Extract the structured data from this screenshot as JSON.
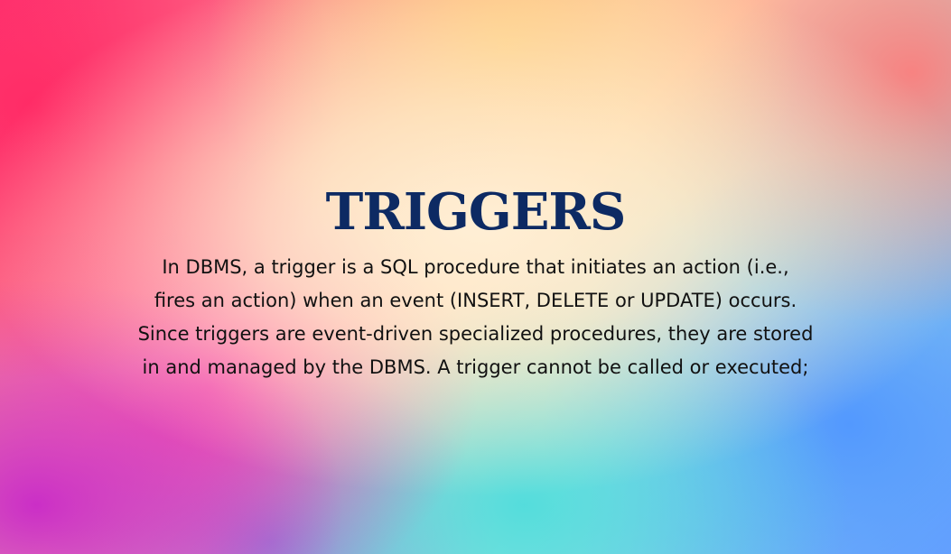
{
  "slide": {
    "title": "TRIGGERS",
    "body_lines": [
      "In DBMS, a trigger is a SQL procedure that initiates an action (i.e.,",
      "fires an action) when an event (INSERT, DELETE or UPDATE) occurs.",
      "Since triggers are event-driven specialized procedures, they are stored",
      "in and managed by the DBMS. A trigger cannot be called or executed;"
    ]
  },
  "colors": {
    "title": "#0d2a63",
    "body_text": "#111111"
  }
}
